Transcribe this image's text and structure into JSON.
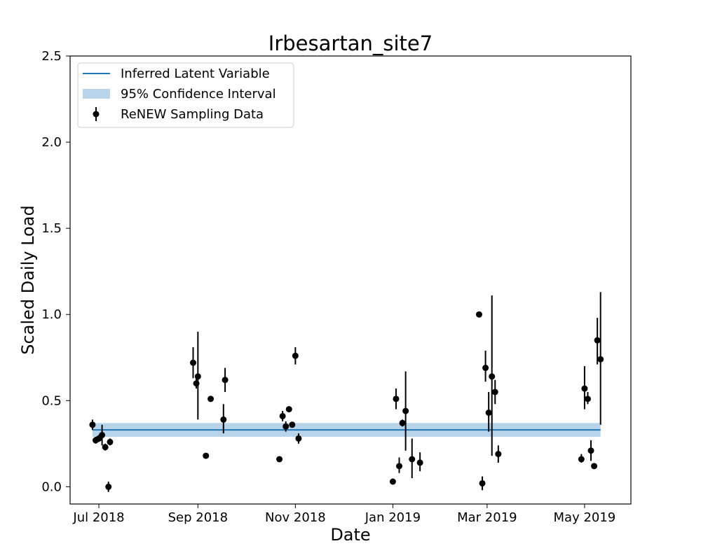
{
  "chart_data": {
    "type": "scatter",
    "title": "Irbesartan_site7",
    "xlabel": "Date",
    "ylabel": "Scaled Daily Load",
    "xlim": [
      "2018-06-13",
      "2019-05-30"
    ],
    "ylim": [
      -0.1,
      2.5
    ],
    "x_ticks": [
      {
        "date": "2018-07-01",
        "label": "Jul 2018"
      },
      {
        "date": "2018-09-01",
        "label": "Sep 2018"
      },
      {
        "date": "2018-11-01",
        "label": "Nov 2018"
      },
      {
        "date": "2019-01-01",
        "label": "Jan 2019"
      },
      {
        "date": "2019-03-01",
        "label": "Mar 2019"
      },
      {
        "date": "2019-05-01",
        "label": "May 2019"
      }
    ],
    "y_ticks": [
      {
        "value": 0.0,
        "label": "0.0"
      },
      {
        "value": 0.5,
        "label": "0.5"
      },
      {
        "value": 1.0,
        "label": "1.0"
      },
      {
        "value": 1.5,
        "label": "1.5"
      },
      {
        "value": 2.0,
        "label": "2.0"
      },
      {
        "value": 2.5,
        "label": "2.5"
      }
    ],
    "legend_position": "top-left",
    "grid": false,
    "colors": {
      "line": "#1f77b4",
      "band": "#b8d4ea",
      "points": "#000000"
    },
    "legend": [
      {
        "label": "Inferred Latent Variable",
        "kind": "line"
      },
      {
        "label": "95% Confidence Interval",
        "kind": "band"
      },
      {
        "label": "ReNEW Sampling Data",
        "kind": "errorbar"
      }
    ],
    "latent": {
      "x_start": "2018-06-27",
      "x_end": "2019-05-11",
      "value": 0.33,
      "lower": 0.29,
      "upper": 0.37
    },
    "series": [
      {
        "name": "ReNEW Sampling Data",
        "points": [
          {
            "x": "2018-06-27",
            "y": 0.36,
            "lo": 0.33,
            "hi": 0.39
          },
          {
            "x": "2018-06-29",
            "y": 0.27,
            "lo": 0.25,
            "hi": 0.29
          },
          {
            "x": "2018-07-01",
            "y": 0.28,
            "lo": 0.26,
            "hi": 0.3
          },
          {
            "x": "2018-07-03",
            "y": 0.3,
            "lo": 0.24,
            "hi": 0.36
          },
          {
            "x": "2018-07-05",
            "y": 0.23,
            "lo": 0.21,
            "hi": 0.25
          },
          {
            "x": "2018-07-07",
            "y": 0.0,
            "lo": -0.03,
            "hi": 0.03
          },
          {
            "x": "2018-07-08",
            "y": 0.26,
            "lo": 0.24,
            "hi": 0.28
          },
          {
            "x": "2018-08-29",
            "y": 0.72,
            "lo": 0.63,
            "hi": 0.81
          },
          {
            "x": "2018-08-31",
            "y": 0.6,
            "lo": 0.57,
            "hi": 0.63
          },
          {
            "x": "2018-09-01",
            "y": 0.64,
            "lo": 0.39,
            "hi": 0.9
          },
          {
            "x": "2018-09-06",
            "y": 0.18,
            "lo": 0.17,
            "hi": 0.19
          },
          {
            "x": "2018-09-09",
            "y": 0.51,
            "lo": 0.5,
            "hi": 0.52
          },
          {
            "x": "2018-09-17",
            "y": 0.39,
            "lo": 0.31,
            "hi": 0.48
          },
          {
            "x": "2018-09-18",
            "y": 0.62,
            "lo": 0.55,
            "hi": 0.69
          },
          {
            "x": "2018-10-22",
            "y": 0.16,
            "lo": 0.15,
            "hi": 0.17
          },
          {
            "x": "2018-10-24",
            "y": 0.41,
            "lo": 0.38,
            "hi": 0.44
          },
          {
            "x": "2018-10-26",
            "y": 0.35,
            "lo": 0.32,
            "hi": 0.38
          },
          {
            "x": "2018-10-28",
            "y": 0.45,
            "lo": 0.44,
            "hi": 0.46
          },
          {
            "x": "2018-10-30",
            "y": 0.36,
            "lo": 0.35,
            "hi": 0.37
          },
          {
            "x": "2018-11-01",
            "y": 0.76,
            "lo": 0.71,
            "hi": 0.81
          },
          {
            "x": "2018-11-03",
            "y": 0.28,
            "lo": 0.25,
            "hi": 0.31
          },
          {
            "x": "2019-01-01",
            "y": 0.03,
            "lo": 0.02,
            "hi": 0.04
          },
          {
            "x": "2019-01-03",
            "y": 0.51,
            "lo": 0.45,
            "hi": 0.57
          },
          {
            "x": "2019-01-05",
            "y": 0.12,
            "lo": 0.08,
            "hi": 0.17
          },
          {
            "x": "2019-01-07",
            "y": 0.37,
            "lo": 0.35,
            "hi": 0.39
          },
          {
            "x": "2019-01-09",
            "y": 0.44,
            "lo": 0.21,
            "hi": 0.67
          },
          {
            "x": "2019-01-13",
            "y": 0.16,
            "lo": 0.05,
            "hi": 0.28
          },
          {
            "x": "2019-01-18",
            "y": 0.14,
            "lo": 0.09,
            "hi": 0.2
          },
          {
            "x": "2019-02-24",
            "y": 1.0,
            "lo": 0.99,
            "hi": 1.01
          },
          {
            "x": "2019-02-26",
            "y": 0.02,
            "lo": -0.02,
            "hi": 0.06
          },
          {
            "x": "2019-02-28",
            "y": 0.69,
            "lo": 0.61,
            "hi": 0.79
          },
          {
            "x": "2019-03-02",
            "y": 0.43,
            "lo": 0.32,
            "hi": 0.55
          },
          {
            "x": "2019-03-04",
            "y": 0.64,
            "lo": 0.18,
            "hi": 1.11
          },
          {
            "x": "2019-03-06",
            "y": 0.55,
            "lo": 0.48,
            "hi": 0.62
          },
          {
            "x": "2019-03-08",
            "y": 0.19,
            "lo": 0.14,
            "hi": 0.24
          },
          {
            "x": "2019-04-29",
            "y": 0.16,
            "lo": 0.14,
            "hi": 0.19
          },
          {
            "x": "2019-05-01",
            "y": 0.57,
            "lo": 0.45,
            "hi": 0.7
          },
          {
            "x": "2019-05-03",
            "y": 0.51,
            "lo": 0.48,
            "hi": 0.55
          },
          {
            "x": "2019-05-05",
            "y": 0.21,
            "lo": 0.15,
            "hi": 0.27
          },
          {
            "x": "2019-05-07",
            "y": 0.12,
            "lo": 0.11,
            "hi": 0.13
          },
          {
            "x": "2019-05-09",
            "y": 0.85,
            "lo": 0.71,
            "hi": 0.98
          },
          {
            "x": "2019-05-11",
            "y": 0.74,
            "lo": 0.36,
            "hi": 1.13
          }
        ]
      }
    ]
  }
}
